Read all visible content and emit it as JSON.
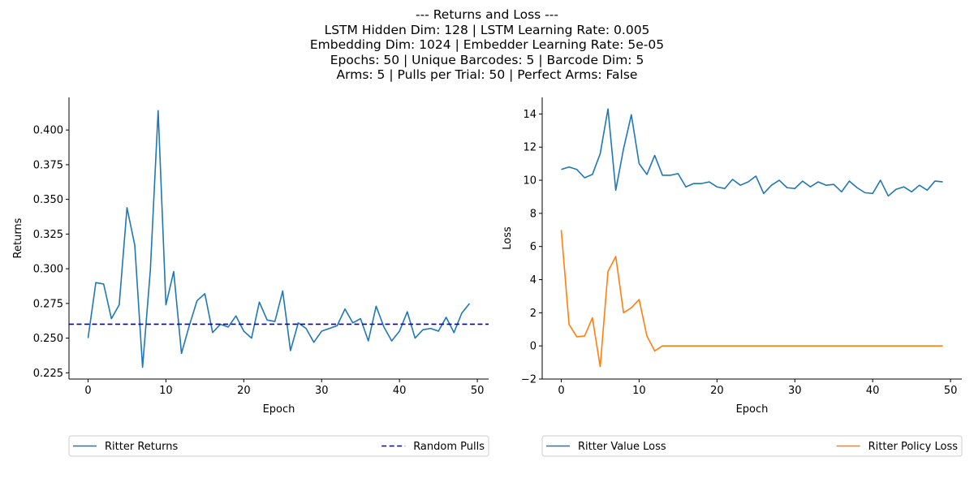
{
  "suptitle": [
    "--- Returns and Loss ---",
    "LSTM Hidden Dim: 128 | LSTM Learning Rate: 0.005",
    "Embedding Dim: 1024 | Embedder Learning Rate: 5e-05",
    "Epochs: 50 | Unique Barcodes: 5 | Barcode Dim: 5",
    "Arms: 5 | Pulls per Trial: 50 | Perfect Arms: False"
  ],
  "chart_data": [
    {
      "type": "line",
      "xlabel": "Epoch",
      "ylabel": "Returns",
      "xlim": [
        -2.45,
        51.45
      ],
      "ylim": [
        0.2205,
        0.4235
      ],
      "xticks": [
        0,
        10,
        20,
        30,
        40,
        50
      ],
      "xtick_labels": [
        "0",
        "10",
        "20",
        "30",
        "40",
        "50"
      ],
      "yticks": [
        0.225,
        0.25,
        0.275,
        0.3,
        0.325,
        0.35,
        0.375,
        0.4
      ],
      "ytick_labels": [
        "0.225",
        "0.250",
        "0.275",
        "0.300",
        "0.325",
        "0.350",
        "0.375",
        "0.400"
      ],
      "legend_position": "below",
      "series": [
        {
          "name": "Ritter Returns",
          "color": "#1f77b4",
          "style": "solid",
          "x": [
            0,
            1,
            2,
            3,
            4,
            5,
            6,
            7,
            8,
            9,
            10,
            11,
            12,
            13,
            14,
            15,
            16,
            17,
            18,
            19,
            20,
            21,
            22,
            23,
            24,
            25,
            26,
            27,
            28,
            29,
            30,
            31,
            32,
            33,
            34,
            35,
            36,
            37,
            38,
            39,
            40,
            41,
            42,
            43,
            44,
            45,
            46,
            47,
            48,
            49
          ],
          "y": [
            0.25,
            0.29,
            0.289,
            0.264,
            0.274,
            0.344,
            0.317,
            0.229,
            0.299,
            0.414,
            0.274,
            0.298,
            0.239,
            0.259,
            0.277,
            0.282,
            0.254,
            0.26,
            0.258,
            0.266,
            0.255,
            0.25,
            0.276,
            0.263,
            0.262,
            0.284,
            0.241,
            0.261,
            0.257,
            0.247,
            0.255,
            0.257,
            0.259,
            0.271,
            0.261,
            0.264,
            0.248,
            0.273,
            0.258,
            0.248,
            0.255,
            0.269,
            0.25,
            0.256,
            0.257,
            0.255,
            0.265,
            0.254,
            0.268,
            0.275
          ]
        },
        {
          "name": "Random Pulls",
          "color": "#0000cd",
          "style": "dashed",
          "hline": 0.26
        }
      ]
    },
    {
      "type": "line",
      "xlabel": "Epoch",
      "ylabel": "Loss",
      "xlim": [
        -2.45,
        51.45
      ],
      "ylim": [
        -2.0,
        15.0
      ],
      "xticks": [
        0,
        10,
        20,
        30,
        40,
        50
      ],
      "xtick_labels": [
        "0",
        "10",
        "20",
        "30",
        "40",
        "50"
      ],
      "yticks": [
        -2,
        0,
        2,
        4,
        6,
        8,
        10,
        12,
        14
      ],
      "ytick_labels": [
        "−2",
        "0",
        "2",
        "4",
        "6",
        "8",
        "10",
        "12",
        "14"
      ],
      "legend_position": "below",
      "series": [
        {
          "name": "Ritter Value Loss",
          "color": "#1f77b4",
          "style": "solid",
          "x": [
            0,
            1,
            2,
            3,
            4,
            5,
            6,
            7,
            8,
            9,
            10,
            11,
            12,
            13,
            14,
            15,
            16,
            17,
            18,
            19,
            20,
            21,
            22,
            23,
            24,
            25,
            26,
            27,
            28,
            29,
            30,
            31,
            32,
            33,
            34,
            35,
            36,
            37,
            38,
            39,
            40,
            41,
            42,
            43,
            44,
            45,
            46,
            47,
            48,
            49
          ],
          "y": [
            10.65,
            10.8,
            10.65,
            10.15,
            10.35,
            11.6,
            14.3,
            9.4,
            11.9,
            13.95,
            11.0,
            10.35,
            11.5,
            10.3,
            10.3,
            10.4,
            9.6,
            9.8,
            9.8,
            9.9,
            9.6,
            9.5,
            10.05,
            9.7,
            9.9,
            10.25,
            9.2,
            9.7,
            10.0,
            9.55,
            9.5,
            9.95,
            9.6,
            9.9,
            9.7,
            9.75,
            9.3,
            9.95,
            9.55,
            9.25,
            9.2,
            10.0,
            9.05,
            9.45,
            9.6,
            9.3,
            9.7,
            9.4,
            9.95,
            9.9
          ]
        },
        {
          "name": "Ritter Policy Loss",
          "color": "#ff7f0e",
          "style": "solid",
          "x": [
            0,
            1,
            2,
            3,
            4,
            5,
            6,
            7,
            8,
            9,
            10,
            11,
            12,
            13,
            14,
            15,
            16,
            17,
            18,
            19,
            20,
            21,
            22,
            23,
            24,
            25,
            26,
            27,
            28,
            29,
            30,
            31,
            32,
            33,
            34,
            35,
            36,
            37,
            38,
            39,
            40,
            41,
            42,
            43,
            44,
            45,
            46,
            47,
            48,
            49
          ],
          "y": [
            7.0,
            1.3,
            0.55,
            0.6,
            1.7,
            -1.25,
            4.5,
            5.4,
            2.0,
            2.3,
            2.8,
            0.6,
            -0.3,
            0.0,
            0.0,
            0.0,
            0.0,
            0.0,
            0.0,
            0.0,
            0.0,
            0.0,
            0.0,
            0.0,
            0.0,
            0.0,
            0.0,
            0.0,
            0.0,
            0.0,
            0.0,
            0.0,
            0.0,
            0.0,
            0.0,
            0.0,
            0.0,
            0.0,
            0.0,
            0.0,
            0.0,
            0.0,
            0.0,
            0.0,
            0.0,
            0.0,
            0.0,
            0.0,
            0.0,
            0.0
          ]
        }
      ]
    }
  ]
}
